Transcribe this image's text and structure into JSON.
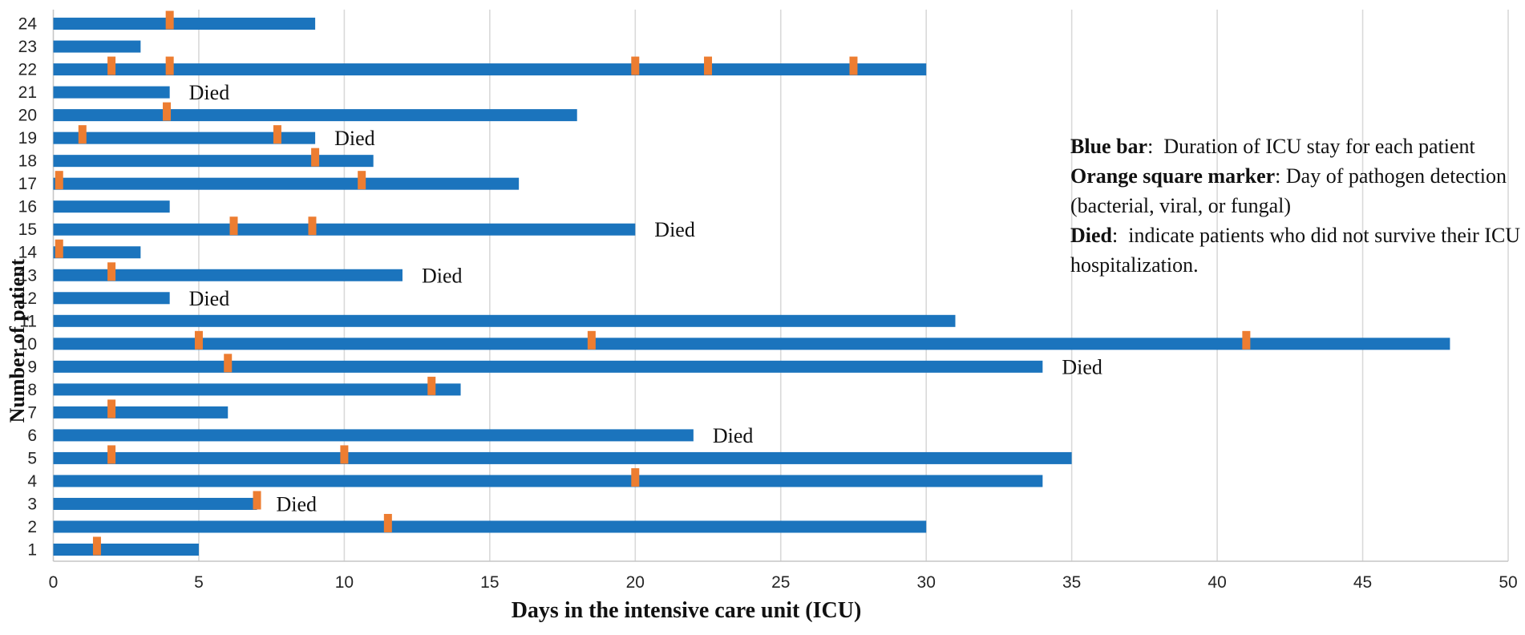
{
  "chart_data": {
    "type": "bar",
    "orientation": "horizontal",
    "title": "",
    "xlabel": "Days in the intensive care unit (ICU)",
    "ylabel": "Number of patient",
    "xlim": [
      0,
      50
    ],
    "xticks": [
      0,
      5,
      10,
      15,
      20,
      25,
      30,
      35,
      40,
      45,
      50
    ],
    "grid": "vertical-light-gray",
    "died_label": "Died",
    "colors": {
      "bar_blue": "#1B74BD",
      "marker_orange": "#ED7D31",
      "gridline": "#D9D9D9",
      "axis_line": "#C6C6C6",
      "tick_text": "#262626",
      "label_text": "#111111"
    },
    "patients": [
      {
        "patient": 1,
        "icu_days": 5,
        "pathogen_detection_days": [
          1.5
        ],
        "died": false
      },
      {
        "patient": 2,
        "icu_days": 30,
        "pathogen_detection_days": [
          11.5
        ],
        "died": false
      },
      {
        "patient": 3,
        "icu_days": 7,
        "pathogen_detection_days": [
          7
        ],
        "died": true
      },
      {
        "patient": 4,
        "icu_days": 34,
        "pathogen_detection_days": [
          20
        ],
        "died": false
      },
      {
        "patient": 5,
        "icu_days": 35,
        "pathogen_detection_days": [
          2,
          10
        ],
        "died": false
      },
      {
        "patient": 6,
        "icu_days": 22,
        "pathogen_detection_days": [],
        "died": true
      },
      {
        "patient": 7,
        "icu_days": 6,
        "pathogen_detection_days": [
          2
        ],
        "died": false
      },
      {
        "patient": 8,
        "icu_days": 14,
        "pathogen_detection_days": [
          13
        ],
        "died": false
      },
      {
        "patient": 9,
        "icu_days": 34,
        "pathogen_detection_days": [
          6
        ],
        "died": true
      },
      {
        "patient": 10,
        "icu_days": 48,
        "pathogen_detection_days": [
          5,
          18.5,
          41
        ],
        "died": false
      },
      {
        "patient": 11,
        "icu_days": 31,
        "pathogen_detection_days": [],
        "died": false
      },
      {
        "patient": 12,
        "icu_days": 4,
        "pathogen_detection_days": [],
        "died": true
      },
      {
        "patient": 13,
        "icu_days": 12,
        "pathogen_detection_days": [
          2
        ],
        "died": true
      },
      {
        "patient": 14,
        "icu_days": 3,
        "pathogen_detection_days": [
          0.2
        ],
        "died": false
      },
      {
        "patient": 15,
        "icu_days": 20,
        "pathogen_detection_days": [
          6.2,
          8.9
        ],
        "died": true
      },
      {
        "patient": 16,
        "icu_days": 4,
        "pathogen_detection_days": [],
        "died": false
      },
      {
        "patient": 17,
        "icu_days": 16,
        "pathogen_detection_days": [
          0.2,
          10.6
        ],
        "died": false
      },
      {
        "patient": 18,
        "icu_days": 11,
        "pathogen_detection_days": [
          9
        ],
        "died": false
      },
      {
        "patient": 19,
        "icu_days": 9,
        "pathogen_detection_days": [
          1,
          7.7
        ],
        "died": true
      },
      {
        "patient": 20,
        "icu_days": 18,
        "pathogen_detection_days": [
          3.9
        ],
        "died": false
      },
      {
        "patient": 21,
        "icu_days": 4,
        "pathogen_detection_days": [],
        "died": true
      },
      {
        "patient": 22,
        "icu_days": 30,
        "pathogen_detection_days": [
          2,
          4,
          20,
          22.5,
          27.5
        ],
        "died": false
      },
      {
        "patient": 23,
        "icu_days": 3,
        "pathogen_detection_days": [],
        "died": false
      },
      {
        "patient": 24,
        "icu_days": 9,
        "pathogen_detection_days": [
          4
        ],
        "died": false
      }
    ]
  },
  "legend": {
    "items": [
      {
        "term": "Blue bar",
        "separator": ":  ",
        "description": "Duration of ICU stay for each patient",
        "trail": "\n"
      },
      {
        "term": "Orange square marker",
        "separator": ": ",
        "description": "Day of pathogen detection (bacterial, viral, or fungal)",
        "trail": "\n"
      },
      {
        "term": "Died",
        "separator": ":  ",
        "description": "indicate patients who did not survive their ICU hospitalization.",
        "trail": ""
      }
    ]
  },
  "axes": {
    "x_title": "Days in the intensive care unit (ICU)",
    "y_title": "Number of patient"
  }
}
